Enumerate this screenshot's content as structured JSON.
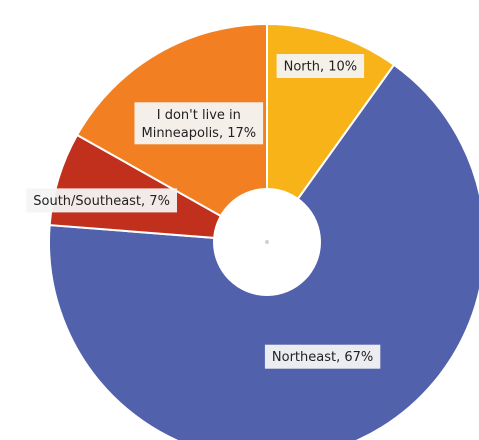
{
  "chart_data": {
    "type": "pie",
    "donut": true,
    "title": "",
    "slices": [
      {
        "label": "North",
        "value": 10,
        "display_label": "North, 10%",
        "color": "#F7B318"
      },
      {
        "label": "Northeast",
        "value": 67,
        "display_label": "Northeast, 67%",
        "color": "#5161AC"
      },
      {
        "label": "South/Southeast",
        "value": 7,
        "display_label": "South/Southeast, 7%",
        "color": "#C1301C"
      },
      {
        "label": "I don't live in Minneapolis",
        "value": 17,
        "display_label_lines": [
          "I don't live in",
          "Minneapolis, 17%"
        ],
        "color": "#F28023"
      }
    ],
    "legend": "none"
  }
}
